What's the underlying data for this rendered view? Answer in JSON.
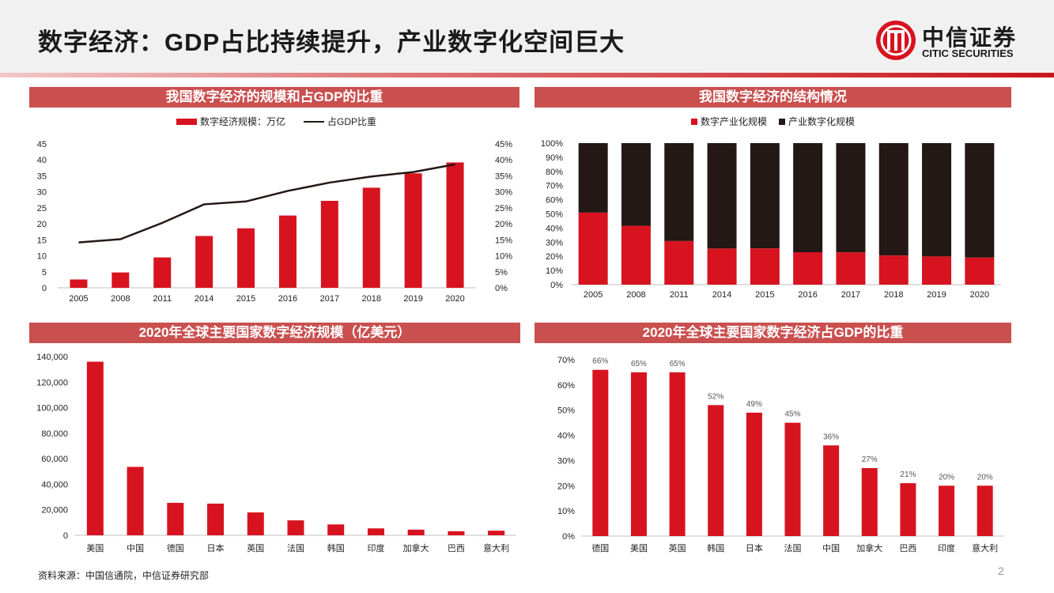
{
  "page": {
    "title": "数字经济：GDP占比持续提升，产业数字化空间巨大",
    "logo_cn": "中信证券",
    "logo_en": "CITIC SECURITIES",
    "source": "资料来源：中国信通院，中信证券研究部",
    "page_number": "2"
  },
  "colors": {
    "red": "#d7131f",
    "dark": "#231815",
    "bar_header": "#c9504f"
  },
  "chart_data": [
    {
      "id": "scale",
      "type": "bar",
      "title": "我国数字经济的规模和占GDP的比重",
      "categories": [
        "2005",
        "2008",
        "2011",
        "2014",
        "2015",
        "2016",
        "2017",
        "2018",
        "2019",
        "2020"
      ],
      "series": [
        {
          "name": "数字经济规模：万亿",
          "kind": "bar",
          "axis": "left",
          "values": [
            2.6,
            4.8,
            9.5,
            16.2,
            18.6,
            22.6,
            27.2,
            31.3,
            35.8,
            39.2
          ]
        },
        {
          "name": "占GDP比重",
          "kind": "line",
          "axis": "right",
          "values": [
            14.2,
            15.2,
            20.3,
            26.1,
            27.0,
            30.3,
            32.9,
            34.8,
            36.2,
            38.6
          ]
        }
      ],
      "ylim_left": [
        0,
        45
      ],
      "ylim_right": [
        0,
        45
      ],
      "yticks_left": [
        "0",
        "5",
        "10",
        "15",
        "20",
        "25",
        "30",
        "35",
        "40",
        "45"
      ],
      "yticks_right": [
        "0%",
        "5%",
        "10%",
        "15%",
        "20%",
        "25%",
        "30%",
        "35%",
        "40%",
        "45%"
      ]
    },
    {
      "id": "structure",
      "type": "bar",
      "stacked": true,
      "title": "我国数字经济的结构情况",
      "categories": [
        "2005",
        "2008",
        "2011",
        "2014",
        "2015",
        "2016",
        "2017",
        "2018",
        "2019",
        "2020"
      ],
      "series": [
        {
          "name": "数字产业化规模",
          "values": [
            50.9,
            41.6,
            30.8,
            25.5,
            25.6,
            22.9,
            22.8,
            20.6,
            19.9,
            19.1
          ]
        },
        {
          "name": "产业数字化规模",
          "values": [
            49.1,
            58.4,
            69.2,
            74.5,
            74.4,
            77.1,
            77.2,
            79.4,
            80.1,
            80.9
          ]
        }
      ],
      "ylim": [
        0,
        100
      ],
      "yticks": [
        "0%",
        "10%",
        "20%",
        "30%",
        "40%",
        "50%",
        "60%",
        "70%",
        "80%",
        "90%",
        "100%"
      ]
    },
    {
      "id": "global_scale",
      "type": "bar",
      "title": "2020年全球主要国家数字经济规模（亿美元）",
      "categories": [
        "美国",
        "中国",
        "德国",
        "日本",
        "英国",
        "法国",
        "韩国",
        "印度",
        "加拿大",
        "巴西",
        "意大利"
      ],
      "values": [
        136000,
        53600,
        25400,
        24800,
        17900,
        11700,
        8500,
        5400,
        4400,
        3200,
        3600
      ],
      "ylim": [
        0,
        140000
      ],
      "yticks": [
        "0",
        "20,000",
        "40,000",
        "60,000",
        "80,000",
        "100,000",
        "120,000",
        "140,000"
      ]
    },
    {
      "id": "global_share",
      "type": "bar",
      "title": "2020年全球主要国家数字经济占GDP的比重",
      "categories": [
        "德国",
        "美国",
        "英国",
        "韩国",
        "日本",
        "法国",
        "中国",
        "加拿大",
        "巴西",
        "印度",
        "意大利"
      ],
      "values": [
        66,
        65,
        65,
        52,
        49,
        45,
        36,
        27,
        21,
        20,
        20
      ],
      "labels": [
        "66%",
        "65%",
        "65%",
        "52%",
        "49%",
        "45%",
        "36%",
        "27%",
        "21%",
        "20%",
        "20%"
      ],
      "ylim": [
        0,
        70
      ],
      "yticks": [
        "0%",
        "10%",
        "20%",
        "30%",
        "40%",
        "50%",
        "60%",
        "70%"
      ]
    }
  ]
}
